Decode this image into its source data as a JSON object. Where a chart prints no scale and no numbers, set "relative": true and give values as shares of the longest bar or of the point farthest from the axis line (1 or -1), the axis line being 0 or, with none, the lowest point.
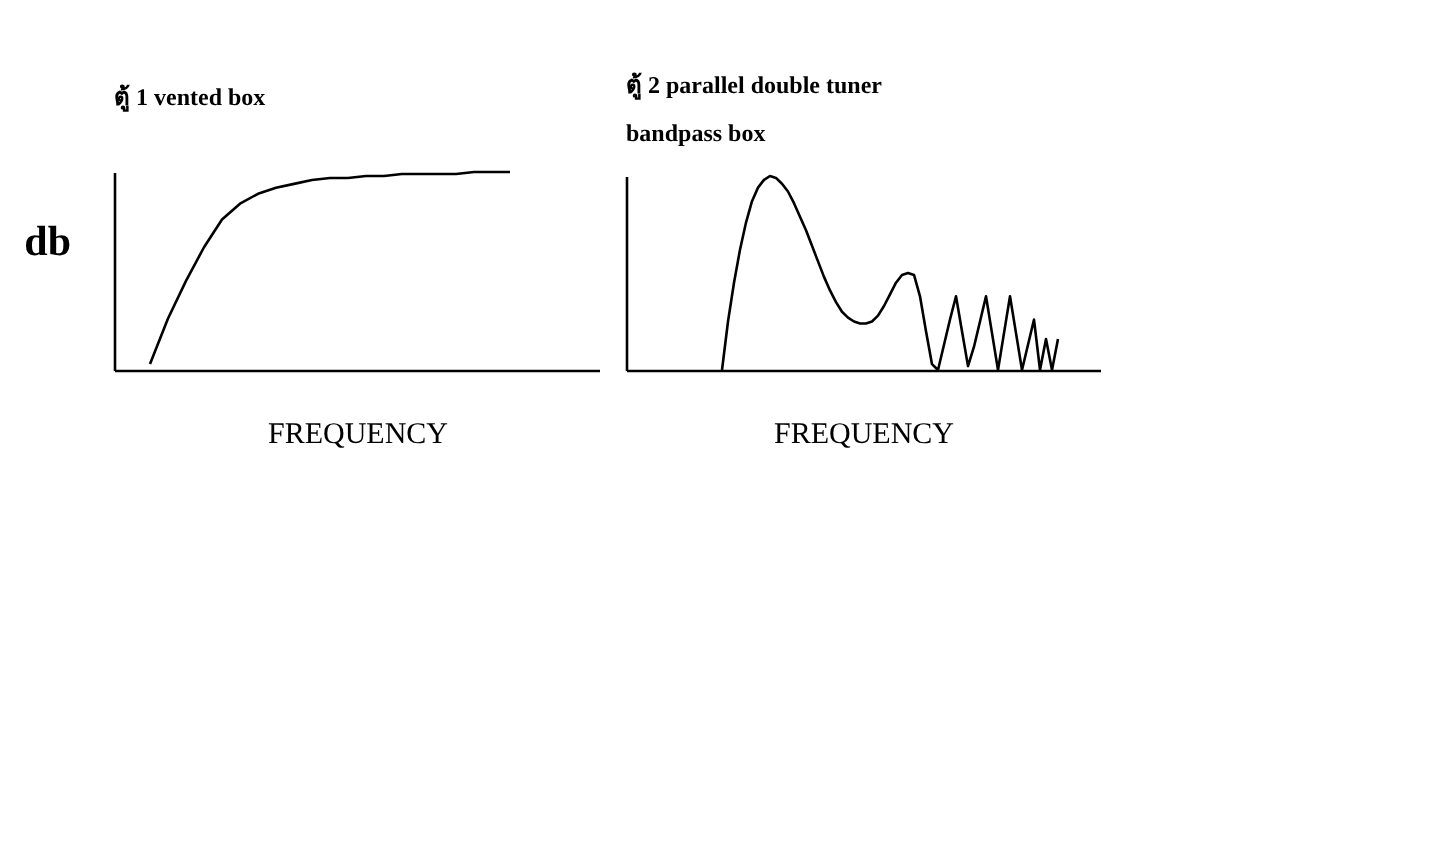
{
  "chart_data": [
    {
      "type": "line",
      "title": "ตู้ 1  vented box",
      "xlabel": "FREQUENCY",
      "ylabel": "db",
      "relative": true,
      "grid": false,
      "marker": "none",
      "line_style": "solid",
      "categories": [
        null,
        null,
        null,
        null,
        null,
        null,
        null,
        null,
        null,
        null,
        null,
        null,
        null,
        null,
        null,
        null,
        null,
        null,
        null,
        null,
        null,
        null,
        null,
        null,
        null,
        null,
        null,
        null
      ],
      "series": [
        {
          "color": "#000000",
          "values": [
            null,
            null,
            0.03,
            0.26,
            0.45,
            0.62,
            0.76,
            0.84,
            0.89,
            0.92,
            0.94,
            0.96,
            0.97,
            0.97,
            0.98,
            0.98,
            0.99,
            0.99,
            0.99,
            0.99,
            1,
            1,
            1,
            null,
            null,
            null,
            null,
            null
          ]
        }
      ]
    },
    {
      "type": "line",
      "title": "ตู้ 2  parallel  double tuner",
      "subtitle": "bandpass box",
      "xlabel": "FREQUENCY",
      "relative": true,
      "grid": false,
      "marker": "none",
      "line_style": "solid",
      "categories": [
        null,
        null,
        null,
        null,
        null,
        null,
        null,
        null,
        null,
        null,
        null,
        null,
        null,
        null,
        null,
        null,
        null,
        null,
        null,
        null,
        null,
        null,
        null,
        null,
        null,
        null,
        null,
        null,
        null,
        null,
        null,
        null,
        null,
        null,
        null,
        null,
        null,
        null,
        null,
        null,
        null,
        null,
        null,
        null,
        null,
        null,
        null,
        null,
        null,
        null,
        null,
        null,
        null,
        null,
        null,
        null,
        null,
        null,
        null,
        null,
        null,
        null,
        null,
        null,
        null,
        null,
        null,
        null,
        null,
        null,
        null,
        null,
        null,
        null,
        null,
        null,
        null,
        null,
        null,
        null
      ],
      "series": [
        {
          "color": "#000000",
          "values": [
            null,
            null,
            null,
            null,
            null,
            null,
            null,
            null,
            null,
            null,
            null,
            null,
            null,
            null,
            null,
            null,
            0,
            0.25,
            0.45,
            0.62,
            0.76,
            0.87,
            0.94,
            0.98,
            1,
            0.99,
            0.96,
            0.92,
            0.86,
            0.79,
            0.72,
            0.64,
            0.56,
            0.48,
            0.41,
            0.35,
            0.3,
            0.27,
            0.25,
            0.24,
            0.24,
            0.25,
            0.28,
            0.33,
            0.39,
            0.45,
            0.49,
            0.5,
            0.49,
            0.38,
            0.2,
            0.03,
            0,
            0.13,
            0.26,
            0.38,
            0.2,
            0.02,
            0.12,
            0.25,
            0.38,
            0.19,
            0,
            0.19,
            0.38,
            0.19,
            0,
            0.13,
            0.26,
            0,
            0.16,
            0,
            0.16,
            null,
            null,
            null,
            null,
            null,
            null,
            null
          ]
        }
      ]
    }
  ]
}
